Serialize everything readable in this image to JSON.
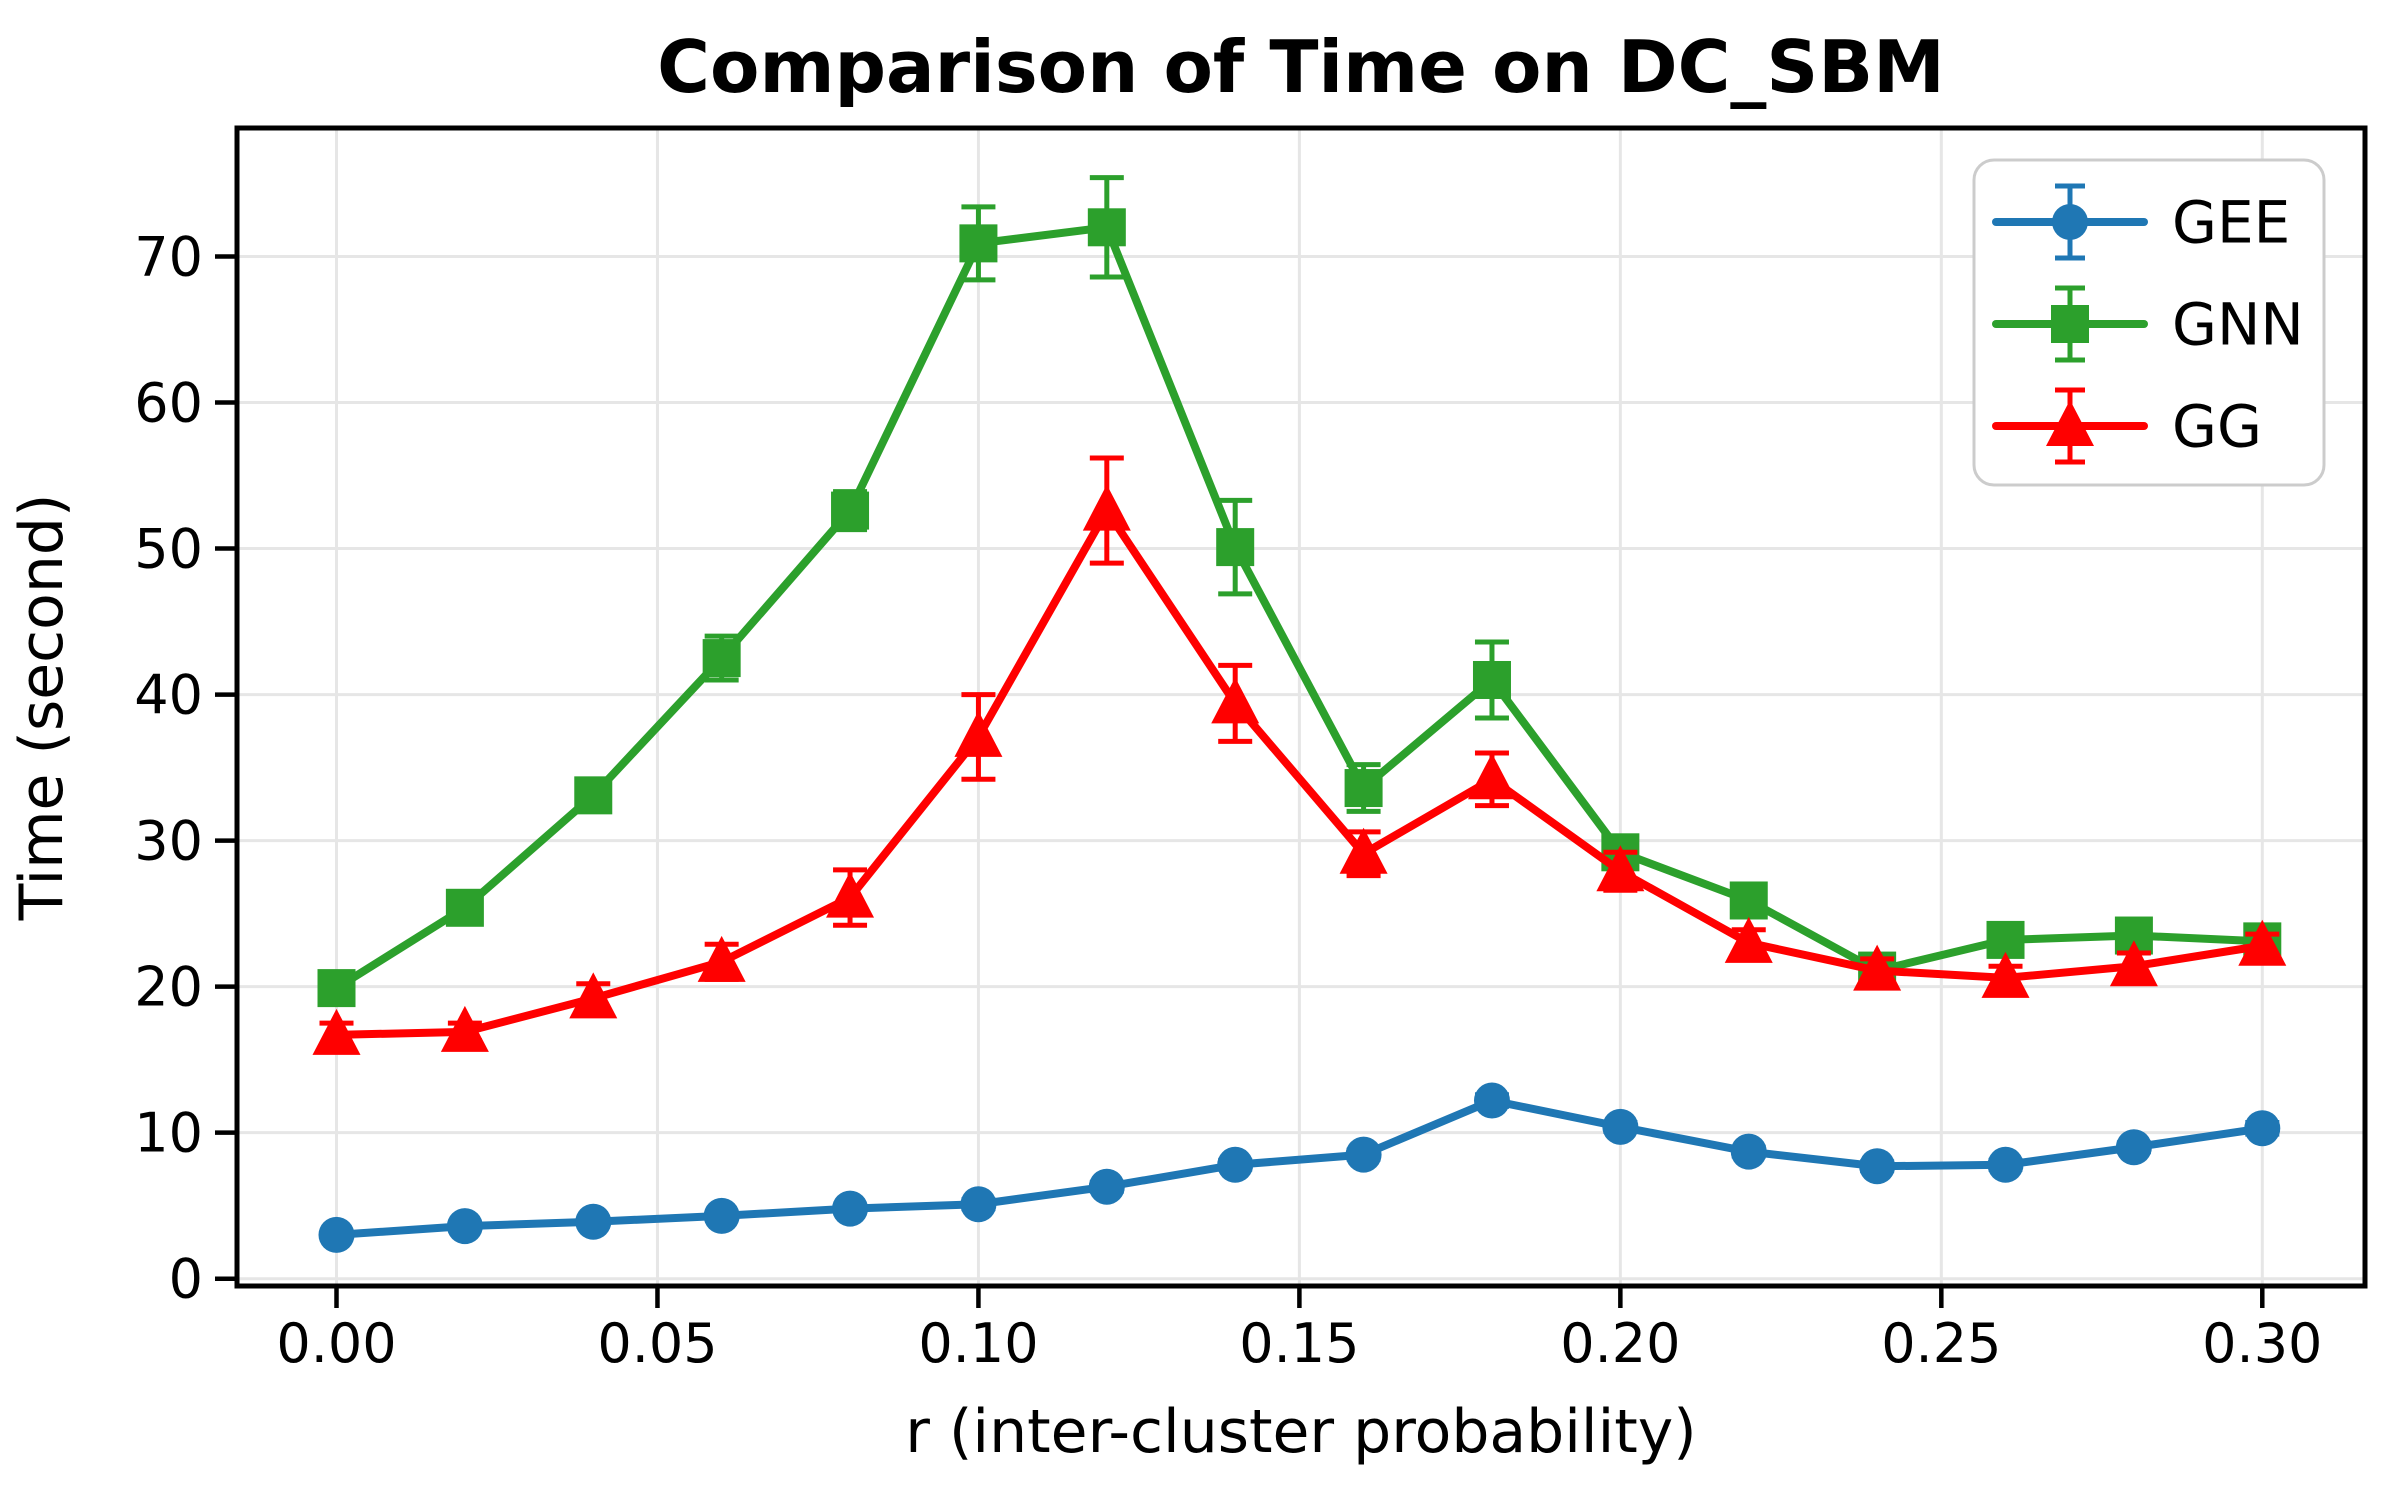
{
  "figure": {
    "background": "#ffffff",
    "frame_color": "#000000",
    "grid_color": "#e6e6e6"
  },
  "chart_data": {
    "type": "line",
    "title": "Comparison of Time on DC_SBM",
    "xlabel": "r (inter-cluster probability)",
    "ylabel": "Time (second)",
    "grid": true,
    "legend_position": "upper right",
    "xlim": [
      -0.0155,
      0.316
    ],
    "ylim": [
      -0.5,
      78.8
    ],
    "xticks": {
      "values": [
        0.0,
        0.05,
        0.1,
        0.15,
        0.2,
        0.25,
        0.3
      ],
      "labels": [
        "0.00",
        "0.05",
        "0.10",
        "0.15",
        "0.20",
        "0.25",
        "0.30"
      ]
    },
    "yticks": {
      "values": [
        0,
        10,
        20,
        30,
        40,
        50,
        60,
        70
      ],
      "labels": [
        "0",
        "10",
        "20",
        "30",
        "40",
        "50",
        "60",
        "70"
      ]
    },
    "x": [
      0.0,
      0.02,
      0.04,
      0.06,
      0.08,
      0.1,
      0.12,
      0.14,
      0.16,
      0.18,
      0.2,
      0.22,
      0.24,
      0.26,
      0.28,
      0.3
    ],
    "series": [
      {
        "name": "GEE",
        "color": "#1f77b4",
        "marker": "circle",
        "values": [
          3.0,
          3.6,
          3.9,
          4.3,
          4.8,
          5.1,
          6.3,
          7.8,
          8.5,
          12.2,
          10.4,
          8.7,
          7.7,
          7.8,
          9.0,
          10.3
        ],
        "errors": [
          0.2,
          0.2,
          0.2,
          0.2,
          0.2,
          0.3,
          0.3,
          0.3,
          0.3,
          0.4,
          0.3,
          0.3,
          0.3,
          0.3,
          0.3,
          0.4
        ]
      },
      {
        "name": "GNN",
        "color": "#2ca02c",
        "marker": "square",
        "values": [
          19.9,
          25.4,
          33.1,
          42.5,
          52.6,
          70.9,
          72.0,
          50.1,
          33.6,
          41.0,
          29.2,
          25.9,
          21.1,
          23.2,
          23.5,
          23.1
        ],
        "errors": [
          1.0,
          0.8,
          1.1,
          1.5,
          1.3,
          2.5,
          3.4,
          3.2,
          1.6,
          2.6,
          0.9,
          0.9,
          0.7,
          0.9,
          0.8,
          0.7
        ]
      },
      {
        "name": "GG",
        "color": "#ff0000",
        "marker": "triangle",
        "values": [
          16.7,
          16.9,
          19.2,
          21.7,
          26.1,
          37.1,
          52.6,
          39.4,
          29.1,
          34.2,
          27.9,
          23.0,
          21.1,
          20.6,
          21.4,
          22.8
        ],
        "errors": [
          0.8,
          0.6,
          1.0,
          1.2,
          1.9,
          2.9,
          3.6,
          2.6,
          1.5,
          1.8,
          1.3,
          0.9,
          0.8,
          0.8,
          0.9,
          0.8
        ]
      }
    ]
  }
}
